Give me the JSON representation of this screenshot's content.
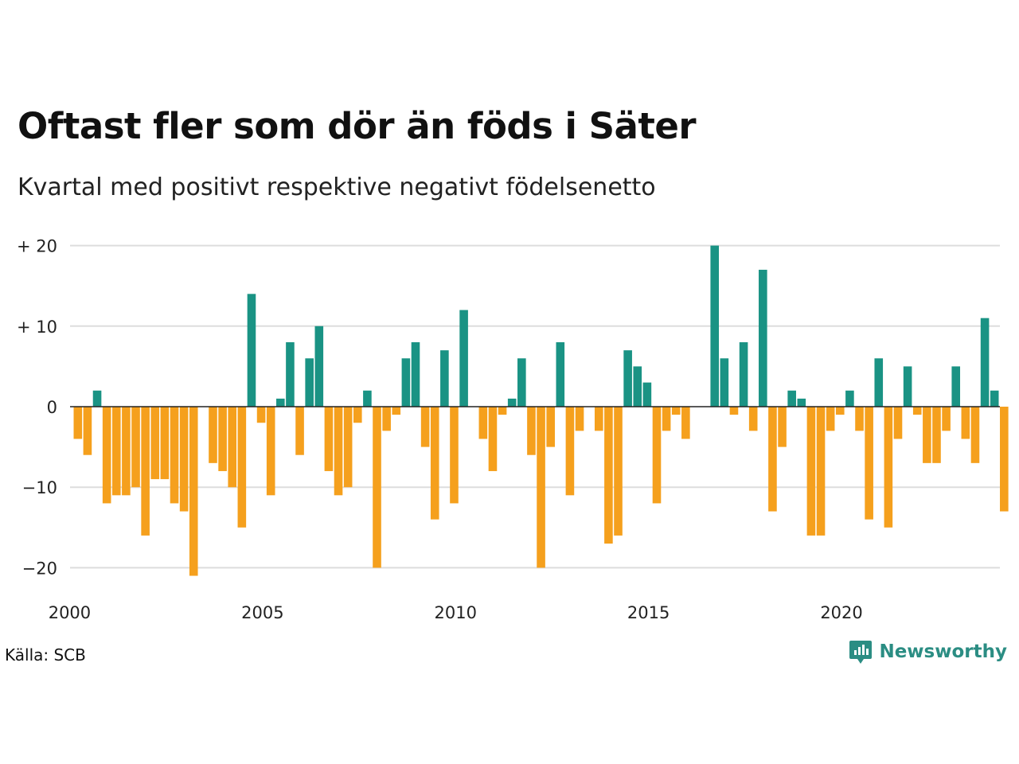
{
  "title": "Oftast fler som dör än föds i Säter",
  "subtitle": "Kvartal med positivt respektive negativt födelsenetto",
  "source": "Källa: SCB",
  "brand": "Newsworthy",
  "colors": {
    "positive": "#1a9384",
    "negative": "#f5a01d",
    "grid": "#dddddd",
    "zero": "#222222",
    "brand": "#2b8d83"
  },
  "chart_data": {
    "type": "bar",
    "x_start": "2000 Q1",
    "ylim": [
      -21,
      20
    ],
    "ticks_y": [
      {
        "value": 20,
        "label": "+ 20"
      },
      {
        "value": 10,
        "label": "+ 10"
      },
      {
        "value": 0,
        "label": "0"
      },
      {
        "value": -10,
        "label": "−10"
      },
      {
        "value": -20,
        "label": "−20"
      }
    ],
    "ticks_x": [
      {
        "year": 2000,
        "label": "2000"
      },
      {
        "year": 2005,
        "label": "2005"
      },
      {
        "year": 2010,
        "label": "2010"
      },
      {
        "year": 2015,
        "label": "2015"
      },
      {
        "year": 2020,
        "label": "2020"
      }
    ],
    "values": [
      -4,
      -6,
      2,
      -12,
      -11,
      -11,
      -10,
      -16,
      -9,
      -9,
      -12,
      -13,
      -21,
      0,
      -7,
      -8,
      -10,
      -15,
      14,
      -2,
      -11,
      1,
      8,
      -6,
      6,
      10,
      -8,
      -11,
      -10,
      -2,
      2,
      -20,
      -3,
      -1,
      6,
      8,
      -5,
      -14,
      7,
      -12,
      12,
      0,
      -4,
      -8,
      -1,
      1,
      6,
      -6,
      -20,
      -5,
      8,
      -11,
      -3,
      0,
      -3,
      -17,
      -16,
      7,
      5,
      3,
      -12,
      -3,
      -1,
      -4,
      0,
      0,
      20,
      6,
      -1,
      8,
      -3,
      17,
      -13,
      -5,
      2,
      1,
      -16,
      -16,
      -3,
      -1,
      2,
      -3,
      -14,
      6,
      -15,
      -4,
      5,
      -1,
      -7,
      -7,
      -3,
      5,
      -4,
      -7,
      11,
      2,
      -13
    ]
  }
}
